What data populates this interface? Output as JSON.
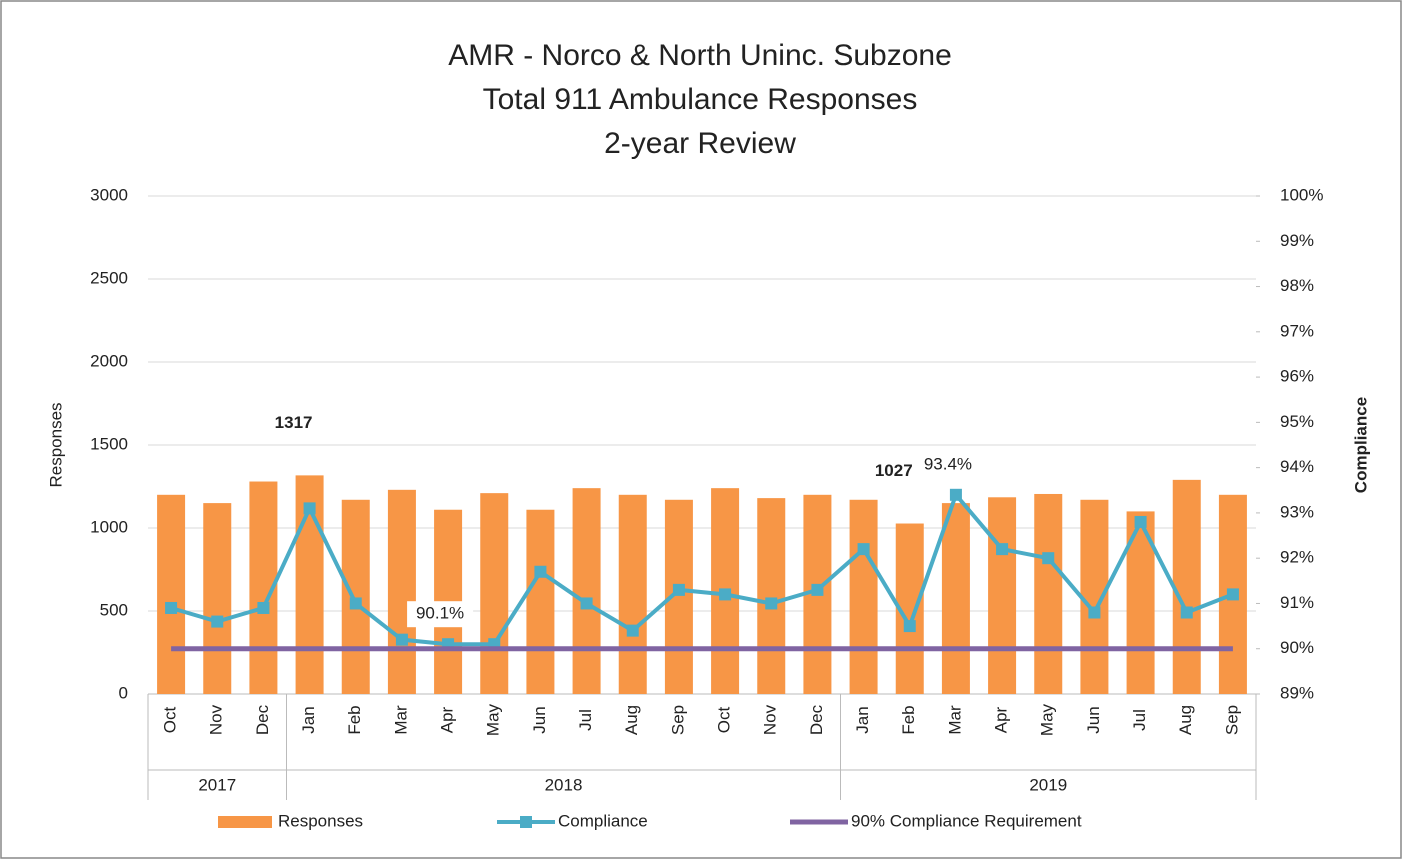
{
  "chart_data": {
    "type": "bar-line",
    "title": [
      "AMR - Norco & North Uninc. Subzone",
      "Total 911 Ambulance Responses",
      "2-year Review"
    ],
    "ylabel": "Responses",
    "y2label": "Compliance",
    "groups": [
      {
        "name": "2017",
        "months": [
          "Oct",
          "Nov",
          "Dec"
        ]
      },
      {
        "name": "2018",
        "months": [
          "Jan",
          "Feb",
          "Mar",
          "Apr",
          "May",
          "Jun",
          "Jul",
          "Aug",
          "Sep",
          "Oct",
          "Nov",
          "Dec"
        ]
      },
      {
        "name": "2019",
        "months": [
          "Jan",
          "Feb",
          "Mar",
          "Apr",
          "May",
          "Jun",
          "Jul",
          "Aug",
          "Sep"
        ]
      }
    ],
    "series": [
      {
        "name": "Responses",
        "type": "bar",
        "color": "#f79646",
        "values": [
          1200,
          1150,
          1280,
          1317,
          1170,
          1230,
          1110,
          1210,
          1110,
          1240,
          1200,
          1170,
          1240,
          1180,
          1200,
          1170,
          1027,
          1150,
          1185,
          1205,
          1170,
          1100,
          1290,
          1200
        ],
        "value_labels": [
          null,
          null,
          null,
          "1317",
          null,
          null,
          null,
          null,
          null,
          null,
          null,
          null,
          null,
          null,
          null,
          null,
          "1027",
          null,
          null,
          null,
          null,
          null,
          null,
          null
        ]
      },
      {
        "name": "Compliance",
        "type": "line",
        "axis": "y2",
        "color": "#4bacc6",
        "marker": "square",
        "values": [
          90.9,
          90.6,
          90.9,
          93.1,
          91.0,
          90.2,
          90.1,
          90.1,
          91.7,
          91.0,
          90.4,
          91.3,
          91.2,
          91.0,
          91.3,
          92.2,
          90.5,
          93.4,
          92.2,
          92.0,
          90.8,
          92.8,
          90.8,
          91.2
        ],
        "value_labels": [
          null,
          null,
          null,
          null,
          null,
          null,
          "90.1%",
          null,
          null,
          null,
          null,
          null,
          null,
          null,
          null,
          null,
          null,
          "93.4%",
          null,
          null,
          null,
          null,
          null,
          null
        ]
      },
      {
        "name": "90% Compliance Requirement",
        "type": "line",
        "axis": "y2",
        "color": "#8064a2",
        "values": [
          90,
          90,
          90,
          90,
          90,
          90,
          90,
          90,
          90,
          90,
          90,
          90,
          90,
          90,
          90,
          90,
          90,
          90,
          90,
          90,
          90,
          90,
          90,
          90
        ]
      }
    ],
    "ylim": [
      0,
      3000
    ],
    "yticks": [
      0,
      500,
      1000,
      1500,
      2000,
      2500,
      3000
    ],
    "y2lim": [
      89,
      100
    ],
    "y2ticks": [
      {
        "value": 89,
        "label": "89%"
      },
      {
        "value": 90,
        "label": "90%"
      },
      {
        "value": 91,
        "label": "91%"
      },
      {
        "value": 92,
        "label": "92%"
      },
      {
        "value": 93,
        "label": "93%"
      },
      {
        "value": 94,
        "label": "94%"
      },
      {
        "value": 95,
        "label": "95%"
      },
      {
        "value": 96,
        "label": "96%"
      },
      {
        "value": 97,
        "label": "97%"
      },
      {
        "value": 98,
        "label": "98%"
      },
      {
        "value": 99,
        "label": "99%"
      },
      {
        "value": 100,
        "label": "100%"
      }
    ],
    "grid": true,
    "legend": "bottom"
  }
}
